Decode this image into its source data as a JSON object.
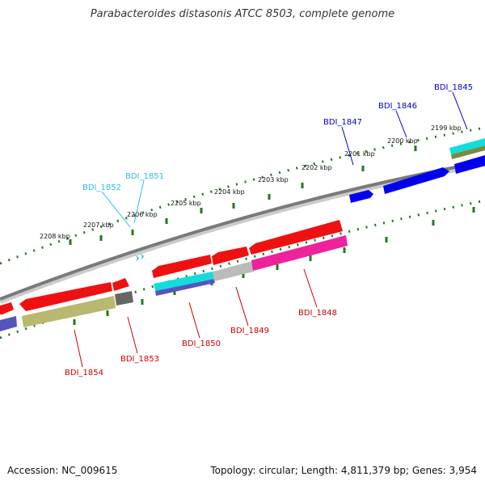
{
  "title": "Parabacteroides distasonis ATCC 8503, complete genome",
  "footer": {
    "accession": "Accession: NC_009615",
    "summary": "Topology: circular; Length: 4,811,379 bp; Genes: 3,954"
  },
  "colors": {
    "backbone": "#7a7a7a",
    "ticks": "#1f7a1f",
    "forward_label": "#0000cc",
    "forward_cyan_label": "#33bbdd",
    "reverse_label": "#cc0000",
    "red_feature": "#ee1111",
    "blue_feature": "#0000ee",
    "cyan_feature": "#11dddd",
    "grey_feature": "#bbbbbb",
    "dark_grey_feature": "#666666",
    "olive_feature": "#b8b870",
    "purple_feature": "#5555bb",
    "magenta_feature": "#ee2299"
  },
  "kbp_labels": [
    "2208 kbp",
    "2207 kbp",
    "2206 kbp",
    "2205 kbp",
    "2204 kbp",
    "2203 kbp",
    "2202 kbp",
    "2201 kbp",
    "2200 kbp",
    "2199 kbp"
  ],
  "genes_forward": [
    {
      "label": "BDI_1845",
      "color_key": "forward_label"
    },
    {
      "label": "BDI_1846",
      "color_key": "forward_label"
    },
    {
      "label": "BDI_1847",
      "color_key": "forward_label"
    },
    {
      "label": "BDI_1851",
      "color_key": "forward_cyan_label"
    },
    {
      "label": "BDI_1852",
      "color_key": "forward_cyan_label"
    }
  ],
  "genes_reverse": [
    {
      "label": "BDI_1848"
    },
    {
      "label": "BDI_1849"
    },
    {
      "label": "BDI_1850"
    },
    {
      "label": "BDI_1853"
    },
    {
      "label": "BDI_1854"
    }
  ]
}
